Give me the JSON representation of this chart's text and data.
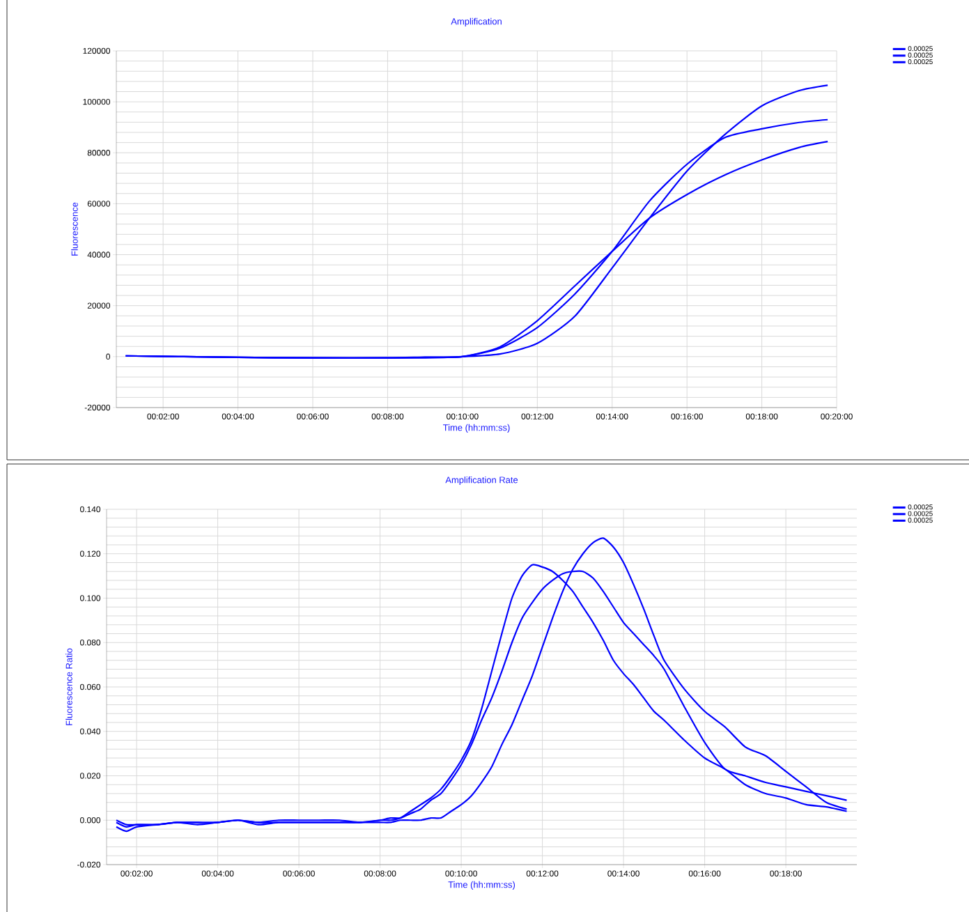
{
  "chart_data": [
    {
      "type": "line",
      "title": "Amplification",
      "xlabel": "Time (hh:mm:ss)",
      "ylabel": "Fluorescence",
      "grid": true,
      "legend": "top right",
      "xlim": [
        0.0125,
        0.333333
      ],
      "ylim": [
        -20000,
        120000
      ],
      "xticks": [
        {
          "value": 0.033333,
          "label": "00:02:00"
        },
        {
          "value": 0.066667,
          "label": "00:04:00"
        },
        {
          "value": 0.1,
          "label": "00:06:00"
        },
        {
          "value": 0.133333,
          "label": "00:08:00"
        },
        {
          "value": 0.166667,
          "label": "00:10:00"
        },
        {
          "value": 0.2,
          "label": "00:12:00"
        },
        {
          "value": 0.233333,
          "label": "00:14:00"
        },
        {
          "value": 0.266667,
          "label": "00:16:00"
        },
        {
          "value": 0.3,
          "label": "00:18:00"
        },
        {
          "value": 0.333333,
          "label": "00:20:00"
        }
      ],
      "yticks": [
        -20000,
        0,
        20000,
        40000,
        60000,
        80000,
        100000,
        120000
      ],
      "x": [
        0.016667,
        0.066667,
        0.1,
        0.133333,
        0.15,
        0.166667,
        0.183333,
        0.2,
        0.216667,
        0.233333,
        0.25,
        0.266667,
        0.283333,
        0.3,
        0.316667,
        0.329333
      ],
      "series": [
        {
          "name": "0.00025",
          "color": "#0000ff",
          "values": [
            300,
            -300,
            -500,
            -500,
            -500,
            0,
            1000,
            5200,
            15800,
            34800,
            54400,
            72800,
            87000,
            98400,
            104400,
            106500
          ]
        },
        {
          "name": "0.00025",
          "color": "#0000ff",
          "values": [
            300,
            -300,
            -500,
            -500,
            -300,
            0,
            3300,
            11400,
            24500,
            41300,
            61100,
            75500,
            85900,
            89400,
            91900,
            93000
          ]
        },
        {
          "name": "0.00025",
          "color": "#0000ff",
          "values": [
            300,
            -300,
            -500,
            -500,
            -200,
            0,
            3800,
            14100,
            27700,
            41300,
            54400,
            63600,
            71200,
            77200,
            82100,
            84400
          ]
        }
      ]
    },
    {
      "type": "line",
      "title": "Amplification Rate",
      "xlabel": "Time (hh:mm:ss)",
      "ylabel": "Fluorescence Ratio",
      "grid": true,
      "legend": "top right",
      "xlim": [
        0.021,
        0.329167
      ],
      "ylim": [
        -0.02,
        0.14
      ],
      "xticks": [
        {
          "value": 0.033333,
          "label": "00:02:00"
        },
        {
          "value": 0.066667,
          "label": "00:04:00"
        },
        {
          "value": 0.1,
          "label": "00:06:00"
        },
        {
          "value": 0.133333,
          "label": "00:08:00"
        },
        {
          "value": 0.166667,
          "label": "00:10:00"
        },
        {
          "value": 0.2,
          "label": "00:12:00"
        },
        {
          "value": 0.233333,
          "label": "00:14:00"
        },
        {
          "value": 0.266667,
          "label": "00:16:00"
        },
        {
          "value": 0.3,
          "label": "00:18:00"
        }
      ],
      "yticks": [
        {
          "value": -0.02,
          "label": "-0.020"
        },
        {
          "value": 0,
          "label": "0.000"
        },
        {
          "value": 0.02,
          "label": "0.020"
        },
        {
          "value": 0.04,
          "label": "0.040"
        },
        {
          "value": 0.06,
          "label": "0.060"
        },
        {
          "value": 0.08,
          "label": "0.080"
        },
        {
          "value": 0.1,
          "label": "0.100"
        },
        {
          "value": 0.12,
          "label": "0.120"
        },
        {
          "value": 0.14,
          "label": "0.140"
        }
      ],
      "x": [
        0.025,
        0.029167,
        0.033333,
        0.041667,
        0.05,
        0.058333,
        0.066667,
        0.075,
        0.083333,
        0.091667,
        0.1,
        0.108333,
        0.116667,
        0.125,
        0.133333,
        0.1375,
        0.141667,
        0.145833,
        0.15,
        0.154167,
        0.158333,
        0.1625,
        0.166667,
        0.170833,
        0.175,
        0.179167,
        0.183333,
        0.1875,
        0.191667,
        0.195833,
        0.2,
        0.204167,
        0.208333,
        0.2125,
        0.216667,
        0.220833,
        0.225,
        0.229167,
        0.233333,
        0.2375,
        0.241667,
        0.245833,
        0.25,
        0.258333,
        0.266667,
        0.275,
        0.283333,
        0.291667,
        0.3,
        0.308333,
        0.316667,
        0.325
      ],
      "series": [
        {
          "name": "0.00025",
          "color": "#0000ff",
          "values": [
            -0.001,
            -0.003,
            -0.002,
            -0.002,
            -0.001,
            -0.002,
            -0.001,
            0.0,
            -0.002,
            -0.001,
            -0.001,
            -0.001,
            -0.001,
            -0.001,
            0.0,
            0.0,
            0.001,
            0.004,
            0.007,
            0.01,
            0.014,
            0.02,
            0.027,
            0.036,
            0.05,
            0.067,
            0.084,
            0.1,
            0.11,
            0.115,
            0.114,
            0.112,
            0.108,
            0.103,
            0.096,
            0.089,
            0.081,
            0.072,
            0.066,
            0.061,
            0.055,
            0.049,
            0.045,
            0.036,
            0.028,
            0.023,
            0.016,
            0.012,
            0.01,
            0.007,
            0.006,
            0.004
          ]
        },
        {
          "name": "0.00025",
          "color": "#0000ff",
          "values": [
            0.0,
            -0.002,
            -0.002,
            -0.002,
            -0.001,
            -0.001,
            -0.001,
            0.0,
            -0.001,
            0.0,
            0.0,
            0.0,
            0.0,
            -0.001,
            0.0,
            0.001,
            0.001,
            0.003,
            0.005,
            0.009,
            0.012,
            0.018,
            0.025,
            0.034,
            0.045,
            0.055,
            0.067,
            0.08,
            0.091,
            0.098,
            0.104,
            0.108,
            0.111,
            0.112,
            0.112,
            0.109,
            0.103,
            0.096,
            0.089,
            0.084,
            0.079,
            0.074,
            0.068,
            0.051,
            0.035,
            0.023,
            0.02,
            0.017,
            0.015,
            0.013,
            0.011,
            0.009
          ]
        },
        {
          "name": "0.00025",
          "color": "#0000ff",
          "values": [
            -0.003,
            -0.005,
            -0.003,
            -0.002,
            -0.001,
            -0.001,
            -0.001,
            0.0,
            -0.001,
            -0.001,
            -0.001,
            -0.001,
            -0.001,
            -0.001,
            -0.001,
            -0.001,
            0.0,
            0.0,
            0.0,
            0.001,
            0.001,
            0.004,
            0.007,
            0.011,
            0.017,
            0.024,
            0.034,
            0.043,
            0.054,
            0.065,
            0.078,
            0.091,
            0.103,
            0.113,
            0.12,
            0.125,
            0.127,
            0.123,
            0.116,
            0.106,
            0.095,
            0.083,
            0.072,
            0.059,
            0.049,
            0.042,
            0.033,
            0.029,
            0.022,
            0.015,
            0.008,
            0.005
          ]
        }
      ]
    }
  ]
}
